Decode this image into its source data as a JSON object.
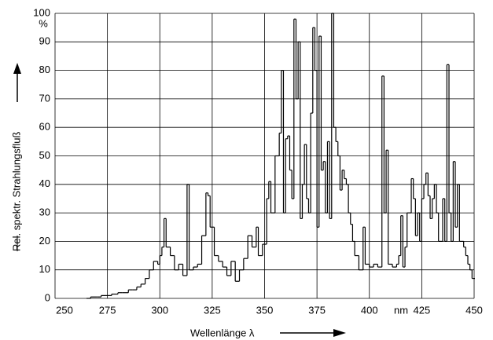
{
  "chart_data": {
    "type": "step",
    "y_label": "Rel. spektr. Strahlungsfluß",
    "x_label": "Wellenlänge λ",
    "x_unit": "nm",
    "y_unit": "%",
    "color": "#000000",
    "grid": true,
    "xlim": [
      250,
      450
    ],
    "ylim": [
      0,
      100
    ],
    "xticks": [
      250,
      275,
      300,
      325,
      350,
      375,
      400,
      425,
      450
    ],
    "yticks": [
      0,
      10,
      20,
      30,
      40,
      50,
      60,
      70,
      80,
      90,
      100
    ],
    "x": [
      265,
      267,
      270,
      272,
      275,
      277,
      280,
      282,
      285,
      287,
      289,
      291,
      293,
      295,
      297,
      299,
      300,
      301,
      302,
      303,
      305,
      307,
      309,
      311,
      313,
      314,
      316,
      318,
      320,
      322,
      323,
      324,
      326,
      328,
      330,
      332,
      334,
      336,
      338,
      340,
      342,
      344,
      346,
      347,
      349,
      351,
      352,
      353,
      355,
      357,
      358,
      359,
      360,
      361,
      362,
      363,
      364,
      365,
      366,
      367,
      368,
      369,
      370,
      371,
      372,
      373,
      374,
      375,
      376,
      377,
      378,
      379,
      380,
      381,
      382,
      383,
      384,
      385,
      386,
      387,
      388,
      389,
      390,
      391,
      392,
      393,
      395,
      397,
      398,
      400,
      402,
      404,
      406,
      407,
      408,
      409,
      411,
      413,
      414,
      415,
      416,
      417,
      418,
      420,
      421,
      422,
      423,
      424,
      425,
      426,
      427,
      428,
      429,
      430,
      431,
      432,
      433,
      435,
      436,
      437,
      438,
      439,
      440,
      441,
      442,
      443,
      445,
      446,
      447,
      448,
      449,
      450
    ],
    "values": [
      0,
      0.5,
      0.5,
      1,
      1,
      1.5,
      2,
      2,
      3,
      3,
      4,
      5,
      7,
      10,
      13,
      12,
      15,
      18,
      28,
      18,
      15,
      10,
      12,
      8,
      40,
      10,
      11,
      12,
      22,
      37,
      36,
      25,
      15,
      13,
      11,
      8,
      13,
      6,
      10,
      14,
      22,
      18,
      25,
      15,
      19,
      35,
      41,
      30,
      50,
      58,
      80,
      30,
      56,
      57,
      45,
      35,
      98,
      70,
      90,
      28,
      40,
      54,
      35,
      30,
      65,
      95,
      80,
      25,
      92,
      45,
      48,
      30,
      55,
      28,
      100,
      60,
      55,
      50,
      38,
      45,
      42,
      40,
      30,
      26,
      20,
      15,
      10,
      25,
      12,
      11,
      12,
      11,
      78,
      30,
      52,
      12,
      11,
      12,
      15,
      29,
      11,
      18,
      30,
      42,
      35,
      22,
      30,
      20,
      35,
      40,
      44,
      36,
      28,
      35,
      40,
      30,
      20,
      35,
      20,
      82,
      30,
      20,
      48,
      25,
      40,
      20,
      18,
      15,
      12,
      10,
      7,
      7
    ]
  }
}
